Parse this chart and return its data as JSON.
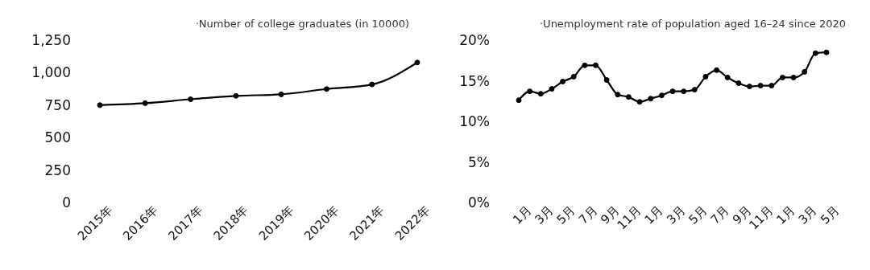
{
  "chart_data": [
    {
      "type": "line",
      "title": "·Number of college graduates (in 10000)",
      "categories": [
        "2015年",
        "2016年",
        "2017年",
        "2018年",
        "2019年",
        "2020年",
        "2021年",
        "2022年"
      ],
      "series": [
        {
          "color": "#000000",
          "values": [
            750,
            765,
            795,
            821,
            833,
            874,
            909,
            1078
          ]
        }
      ],
      "ylim": [
        0,
        1250
      ],
      "yticks": [
        0,
        250,
        500,
        750,
        {
          "value": 1000,
          "label": "1,000"
        },
        {
          "value": 1250,
          "label": "1,250"
        }
      ],
      "grid": false,
      "legend": false,
      "marker": "circle",
      "line_style": "solid"
    },
    {
      "type": "line",
      "title": "·Unemployment rate of population aged 16–24 since 2020",
      "categories": [
        "1月",
        null,
        "3月",
        null,
        "5月",
        null,
        "7月",
        null,
        "9月",
        null,
        "11月",
        null,
        "1月",
        null,
        "3月",
        null,
        "5月",
        null,
        "7月",
        null,
        "9月",
        null,
        "11月",
        null,
        "1月",
        null,
        "3月",
        null,
        "5月"
      ],
      "series": [
        {
          "color": "#000000",
          "values": [
            12.6,
            13.7,
            13.4,
            14.0,
            14.9,
            15.5,
            16.9,
            16.9,
            15.1,
            13.3,
            13.0,
            12.4,
            12.8,
            13.2,
            13.7,
            13.7,
            13.9,
            15.5,
            16.3,
            15.4,
            14.7,
            14.3,
            14.4,
            14.4,
            15.4,
            15.4,
            16.1,
            18.4,
            18.5
          ]
        }
      ],
      "ylim": [
        0,
        20
      ],
      "yticks": [
        {
          "value": 0,
          "label": "0%"
        },
        {
          "value": 5,
          "label": "5%"
        },
        {
          "value": 10,
          "label": "10%"
        },
        {
          "value": 15,
          "label": "15%"
        },
        {
          "value": 20,
          "label": "20%"
        }
      ],
      "grid": false,
      "legend": false,
      "marker": "circle",
      "line_style": "solid"
    }
  ]
}
